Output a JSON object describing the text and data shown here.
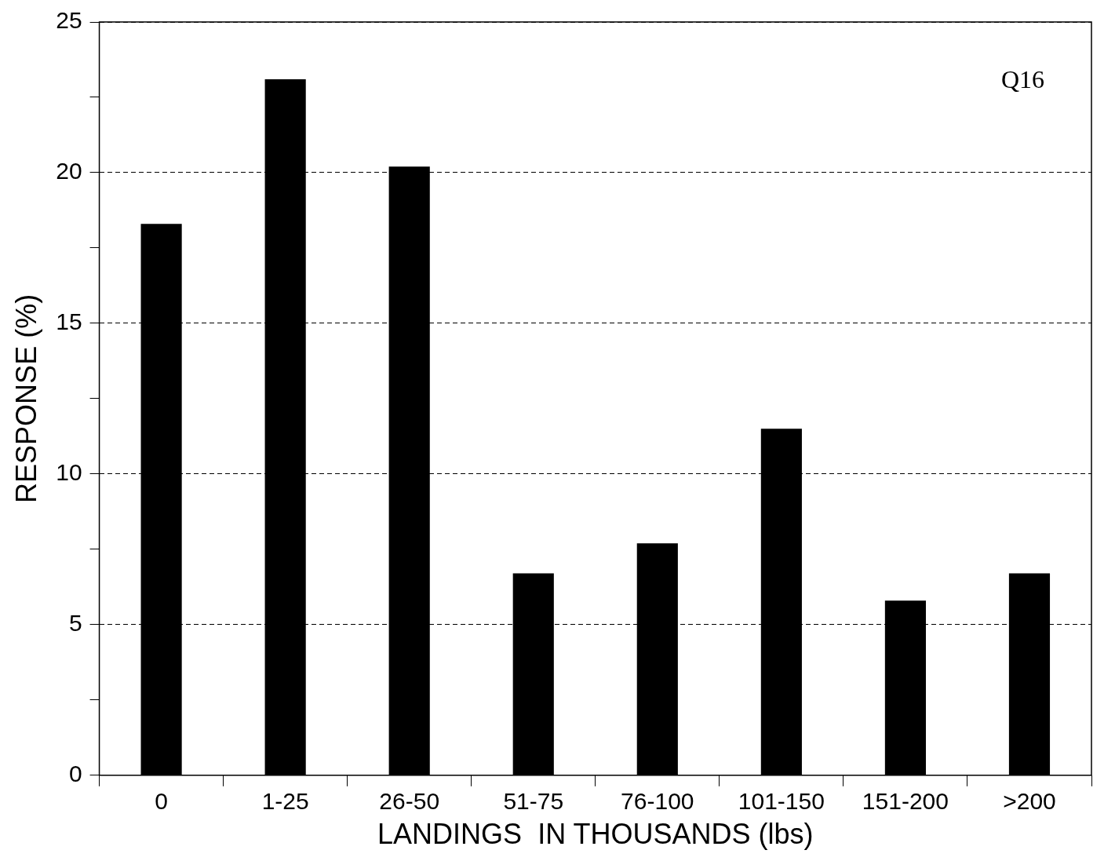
{
  "chart_data": {
    "type": "bar",
    "xlabel": "LANDINGS  IN THOUSANDS (lbs)",
    "ylabel": "RESPONSE (%)",
    "categories": [
      "0",
      "1-25",
      "26-50",
      "51-75",
      "76-100",
      "101-150",
      "151-200",
      ">200"
    ],
    "values": [
      18.3,
      23.1,
      20.2,
      6.7,
      7.7,
      11.5,
      5.8,
      6.7
    ],
    "color": "#000000",
    "ylim": [
      0,
      25
    ],
    "yticks": [
      0,
      {
        "value": 2.5,
        "label": null
      },
      5,
      {
        "value": 7.5,
        "label": null
      },
      10,
      {
        "value": 12.5,
        "label": null
      },
      15,
      {
        "value": 17.5,
        "label": null
      },
      20,
      {
        "value": 22.5,
        "label": null
      },
      25
    ],
    "grid": "y",
    "legend": false,
    "annotations": [
      "Q16"
    ]
  }
}
